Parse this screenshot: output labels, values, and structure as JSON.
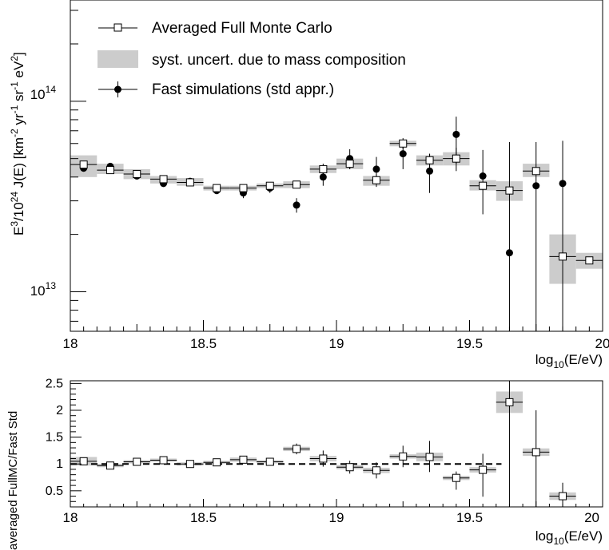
{
  "chart_data": [
    {
      "type": "scatter",
      "panel": "top",
      "ylabel_parts": {
        "E": "E",
        "exp3": "3",
        "div": "/10",
        "exp24": "24",
        "J": " J(E) [km",
        "expm2": "-2",
        "yr": " yr",
        "expm1a": "-1",
        "sr": " sr",
        "expm1b": "-1",
        "eV": " eV",
        "exp2": "2",
        "close": "]"
      },
      "xlabel_parts": {
        "log": "log",
        "sub": "10",
        "rest": "(E/eV)"
      },
      "xlim": [
        18,
        20
      ],
      "ylim": [
        6200000000000.0,
        340000000000000.0
      ],
      "yscale": "log",
      "x_ticks": [
        "18",
        "18.5",
        "19",
        "19.5",
        "20"
      ],
      "y_ticks": [
        {
          "mant": "10",
          "exp": "13",
          "value": 10000000000000.0
        },
        {
          "mant": "10",
          "exp": "14",
          "value": 100000000000000.0
        }
      ],
      "legend": {
        "placement": "top-left",
        "entries": [
          {
            "label": "Averaged Full Monte Carlo",
            "marker": "open-square"
          },
          {
            "label": "syst. uncert. due to mass composition",
            "marker": "grey-band"
          },
          {
            "label": "Fast simulations (std appr.)",
            "marker": "filled-circle"
          }
        ]
      },
      "series": [
        {
          "name": "Averaged Full Monte Carlo",
          "marker": "open-square",
          "x": [
            18.05,
            18.15,
            18.25,
            18.35,
            18.45,
            18.55,
            18.65,
            18.75,
            18.85,
            18.95,
            19.05,
            19.15,
            19.25,
            19.35,
            19.45,
            19.55,
            19.65,
            19.75,
            19.85,
            19.95
          ],
          "y": [
            46500000000000.0,
            43500000000000.0,
            41500000000000.0,
            39000000000000.0,
            37500000000000.0,
            35000000000000.0,
            35000000000000.0,
            36000000000000.0,
            36500000000000.0,
            44000000000000.0,
            47000000000000.0,
            38500000000000.0,
            60000000000000.0,
            49000000000000.0,
            50000000000000.0,
            36000000000000.0,
            34000000000000.0,
            43000000000000.0,
            15300000000000.0,
            14600000000000.0
          ],
          "y_err_low": [
            1000000000000.0,
            1000000000000.0,
            1000000000000.0,
            1000000000000.0,
            1000000000000.0,
            1000000000000.0,
            1000000000000.0,
            1000000000000.0,
            1500000000000.0,
            3000000000000.0,
            3000000000000.0,
            3000000000000.0,
            4000000000000.0,
            4000000000000.0,
            7000000000000.0,
            0,
            0,
            0,
            0,
            0
          ],
          "y_err_high": [
            1000000000000.0,
            1000000000000.0,
            1000000000000.0,
            1000000000000.0,
            1000000000000.0,
            1000000000000.0,
            1000000000000.0,
            1000000000000.0,
            1500000000000.0,
            3000000000000.0,
            3000000000000.0,
            3000000000000.0,
            4000000000000.0,
            4000000000000.0,
            7000000000000.0,
            0,
            0,
            0,
            0,
            0
          ],
          "syst_low": [
            40000000000000.0,
            41500000000000.0,
            39000000000000.0,
            37000000000000.0,
            36000000000000.0,
            34000000000000.0,
            34000000000000.0,
            35000000000000.0,
            35000000000000.0,
            42000000000000.0,
            44000000000000.0,
            36000000000000.0,
            58000000000000.0,
            46000000000000.0,
            46000000000000.0,
            34000000000000.0,
            30000000000000.0,
            40000000000000.0,
            11000000000000.0,
            13200000000000.0
          ],
          "syst_high": [
            52000000000000.0,
            47000000000000.0,
            44000000000000.0,
            40500000000000.0,
            39500000000000.0,
            36000000000000.0,
            36000000000000.0,
            37000000000000.0,
            38000000000000.0,
            46000000000000.0,
            50000000000000.0,
            40500000000000.0,
            62000000000000.0,
            52000000000000.0,
            54000000000000.0,
            38500000000000.0,
            38000000000000.0,
            47000000000000.0,
            20000000000000.0,
            16000000000000.0
          ]
        },
        {
          "name": "Fast simulations (std appr.)",
          "marker": "filled-circle",
          "x": [
            18.05,
            18.15,
            18.25,
            18.35,
            18.45,
            18.55,
            18.65,
            18.75,
            18.85,
            18.95,
            19.05,
            19.15,
            19.25,
            19.35,
            19.45,
            19.55,
            19.65,
            19.75,
            19.85
          ],
          "y": [
            44500000000000.0,
            45500000000000.0,
            40500000000000.0,
            37000000000000.0,
            38000000000000.0,
            34000000000000.0,
            33000000000000.0,
            35000000000000.0,
            28500000000000.0,
            40000000000000.0,
            50000000000000.0,
            44000000000000.0,
            53000000000000.0,
            43000000000000.0,
            67000000000000.0,
            40500000000000.0,
            16000000000000.0,
            36000000000000.0,
            37000000000000.0
          ],
          "y_err_low": [
            1000000000000.0,
            1000000000000.0,
            1000000000000.0,
            1000000000000.0,
            1000000000000.0,
            1500000000000.0,
            2000000000000.0,
            2000000000000.0,
            2500000000000.0,
            4000000000000.0,
            6000000000000.0,
            7000000000000.0,
            9000000000000.0,
            10000000000000.0,
            20000000000000.0,
            15000000000000.0,
            10000000000000.0,
            30000000000000.0,
            31000000000000.0
          ],
          "y_err_high": [
            1000000000000.0,
            1000000000000.0,
            1000000000000.0,
            1000000000000.0,
            1000000000000.0,
            1500000000000.0,
            2000000000000.0,
            2000000000000.0,
            2500000000000.0,
            4000000000000.0,
            6000000000000.0,
            7000000000000.0,
            9000000000000.0,
            10000000000000.0,
            16000000000000.0,
            15000000000000.0,
            45000000000000.0,
            25000000000000.0,
            25000000000000.0
          ]
        }
      ]
    },
    {
      "type": "scatter",
      "panel": "ratio",
      "ylabel": "averaged FullMC/Fast Std",
      "xlabel_parts": {
        "log": "log",
        "sub": "10",
        "rest": "(E/eV)"
      },
      "xlim": [
        18,
        20
      ],
      "ylim": [
        0.2,
        2.55
      ],
      "x_ticks": [
        "18",
        "18.5",
        "19",
        "19.5",
        "20"
      ],
      "y_ticks": [
        "0.5",
        "1",
        "1.5",
        "2",
        "2.5"
      ],
      "reference_line": 1.0,
      "series": [
        {
          "marker": "open-square",
          "x": [
            18.05,
            18.15,
            18.25,
            18.35,
            18.45,
            18.55,
            18.65,
            18.75,
            18.85,
            18.95,
            19.05,
            19.15,
            19.25,
            19.35,
            19.45,
            19.55,
            19.65,
            19.75,
            19.85
          ],
          "y": [
            1.05,
            0.97,
            1.04,
            1.07,
            1.0,
            1.03,
            1.08,
            1.04,
            1.28,
            1.1,
            0.94,
            0.88,
            1.14,
            1.13,
            0.74,
            0.89,
            2.15,
            1.22,
            0.4
          ],
          "y_err_low": [
            0.06,
            0.04,
            0.04,
            0.05,
            0.04,
            0.05,
            0.06,
            0.07,
            0.1,
            0.15,
            0.12,
            0.15,
            0.2,
            0.28,
            0.22,
            0.5,
            2.15,
            1.22,
            0.4
          ],
          "y_err_high": [
            0.06,
            0.04,
            0.04,
            0.05,
            0.04,
            0.05,
            0.06,
            0.07,
            0.1,
            0.15,
            0.12,
            0.15,
            0.2,
            0.3,
            0.12,
            0.3,
            0.4,
            0.78,
            0.25
          ],
          "syst_low": [
            0.97,
            0.94,
            1.01,
            1.04,
            0.97,
            1.0,
            1.04,
            1.01,
            1.24,
            1.05,
            0.9,
            0.83,
            1.1,
            1.05,
            0.7,
            0.84,
            1.95,
            1.15,
            0.33
          ],
          "syst_high": [
            1.13,
            1.0,
            1.07,
            1.1,
            1.03,
            1.06,
            1.12,
            1.07,
            1.32,
            1.15,
            0.98,
            0.93,
            1.18,
            1.21,
            0.78,
            0.94,
            2.35,
            1.29,
            0.47
          ]
        }
      ]
    }
  ]
}
